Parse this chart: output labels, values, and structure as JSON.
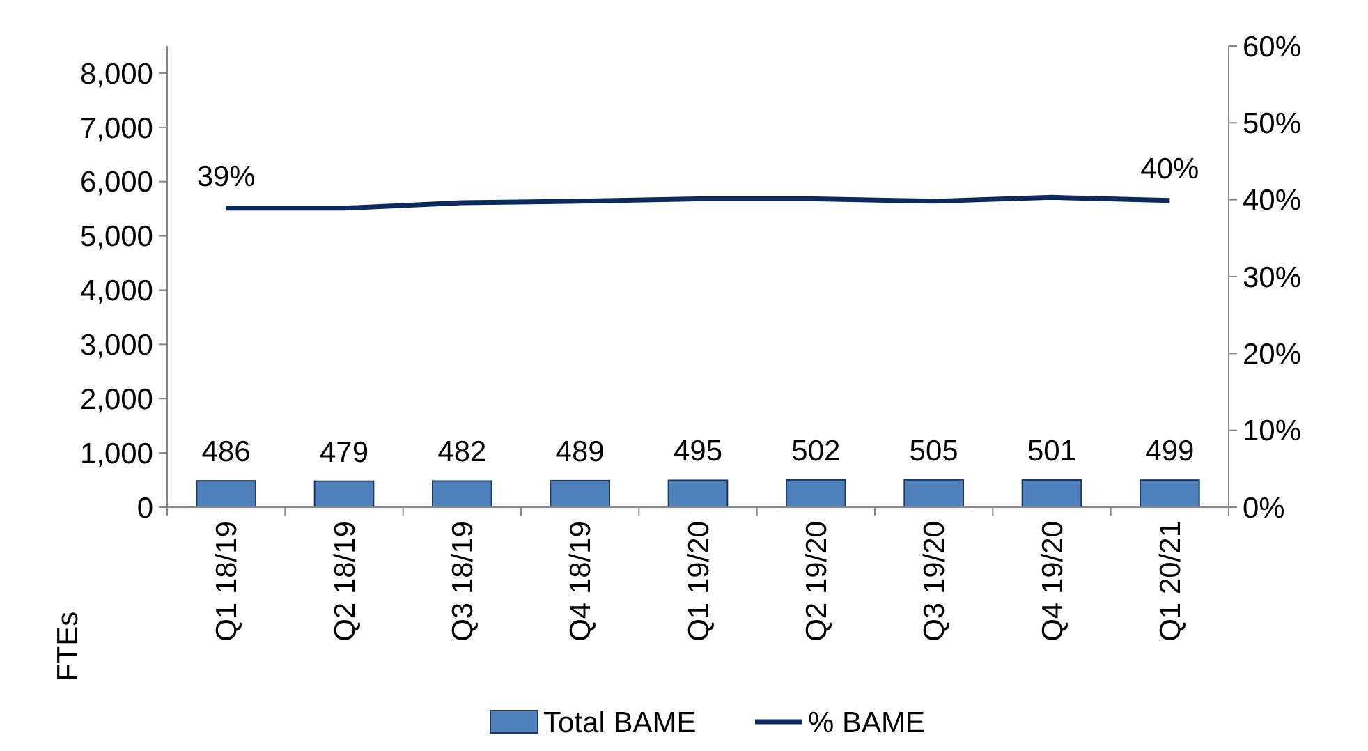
{
  "chart_data": {
    "type": "bar",
    "ylabel": "FTEs",
    "categories": [
      "Q1 18/19",
      "Q2 18/19",
      "Q3 18/19",
      "Q4 18/19",
      "Q1 19/20",
      "Q2 19/20",
      "Q3 19/20",
      "Q4 19/20",
      "Q1 20/21"
    ],
    "series": [
      {
        "name": "Total BAME",
        "color": "#4f81bd",
        "values": [
          486,
          479,
          482,
          489,
          495,
          502,
          505,
          501,
          499
        ]
      },
      {
        "name": "% BAME",
        "type": "line",
        "axis": "y2",
        "color": "#0c2a5e",
        "values": [
          38.9,
          38.9,
          39.6,
          39.8,
          40.1,
          40.1,
          39.8,
          40.3,
          39.9
        ],
        "value_labels": [
          "39%",
          null,
          null,
          null,
          null,
          null,
          null,
          null,
          "40%"
        ]
      }
    ],
    "data_labels": true,
    "ylim": [
      0,
      8500
    ],
    "yticks": [
      {
        "value": 0,
        "label": "0"
      },
      {
        "value": 1000,
        "label": "1,000"
      },
      {
        "value": 2000,
        "label": "2,000"
      },
      {
        "value": 3000,
        "label": "3,000"
      },
      {
        "value": 4000,
        "label": "4,000"
      },
      {
        "value": 5000,
        "label": "5,000"
      },
      {
        "value": 6000,
        "label": "6,000"
      },
      {
        "value": 7000,
        "label": "7,000"
      },
      {
        "value": 8000,
        "label": "8,000"
      }
    ],
    "y2lim": [
      0,
      60
    ],
    "y2ticks": [
      {
        "value": 0,
        "label": "0%"
      },
      {
        "value": 10,
        "label": "10%"
      },
      {
        "value": 20,
        "label": "20%"
      },
      {
        "value": 30,
        "label": "30%"
      },
      {
        "value": 40,
        "label": "40%"
      },
      {
        "value": 50,
        "label": "50%"
      },
      {
        "value": 60,
        "label": "60%"
      }
    ],
    "legend": "bottom",
    "grid": false
  }
}
